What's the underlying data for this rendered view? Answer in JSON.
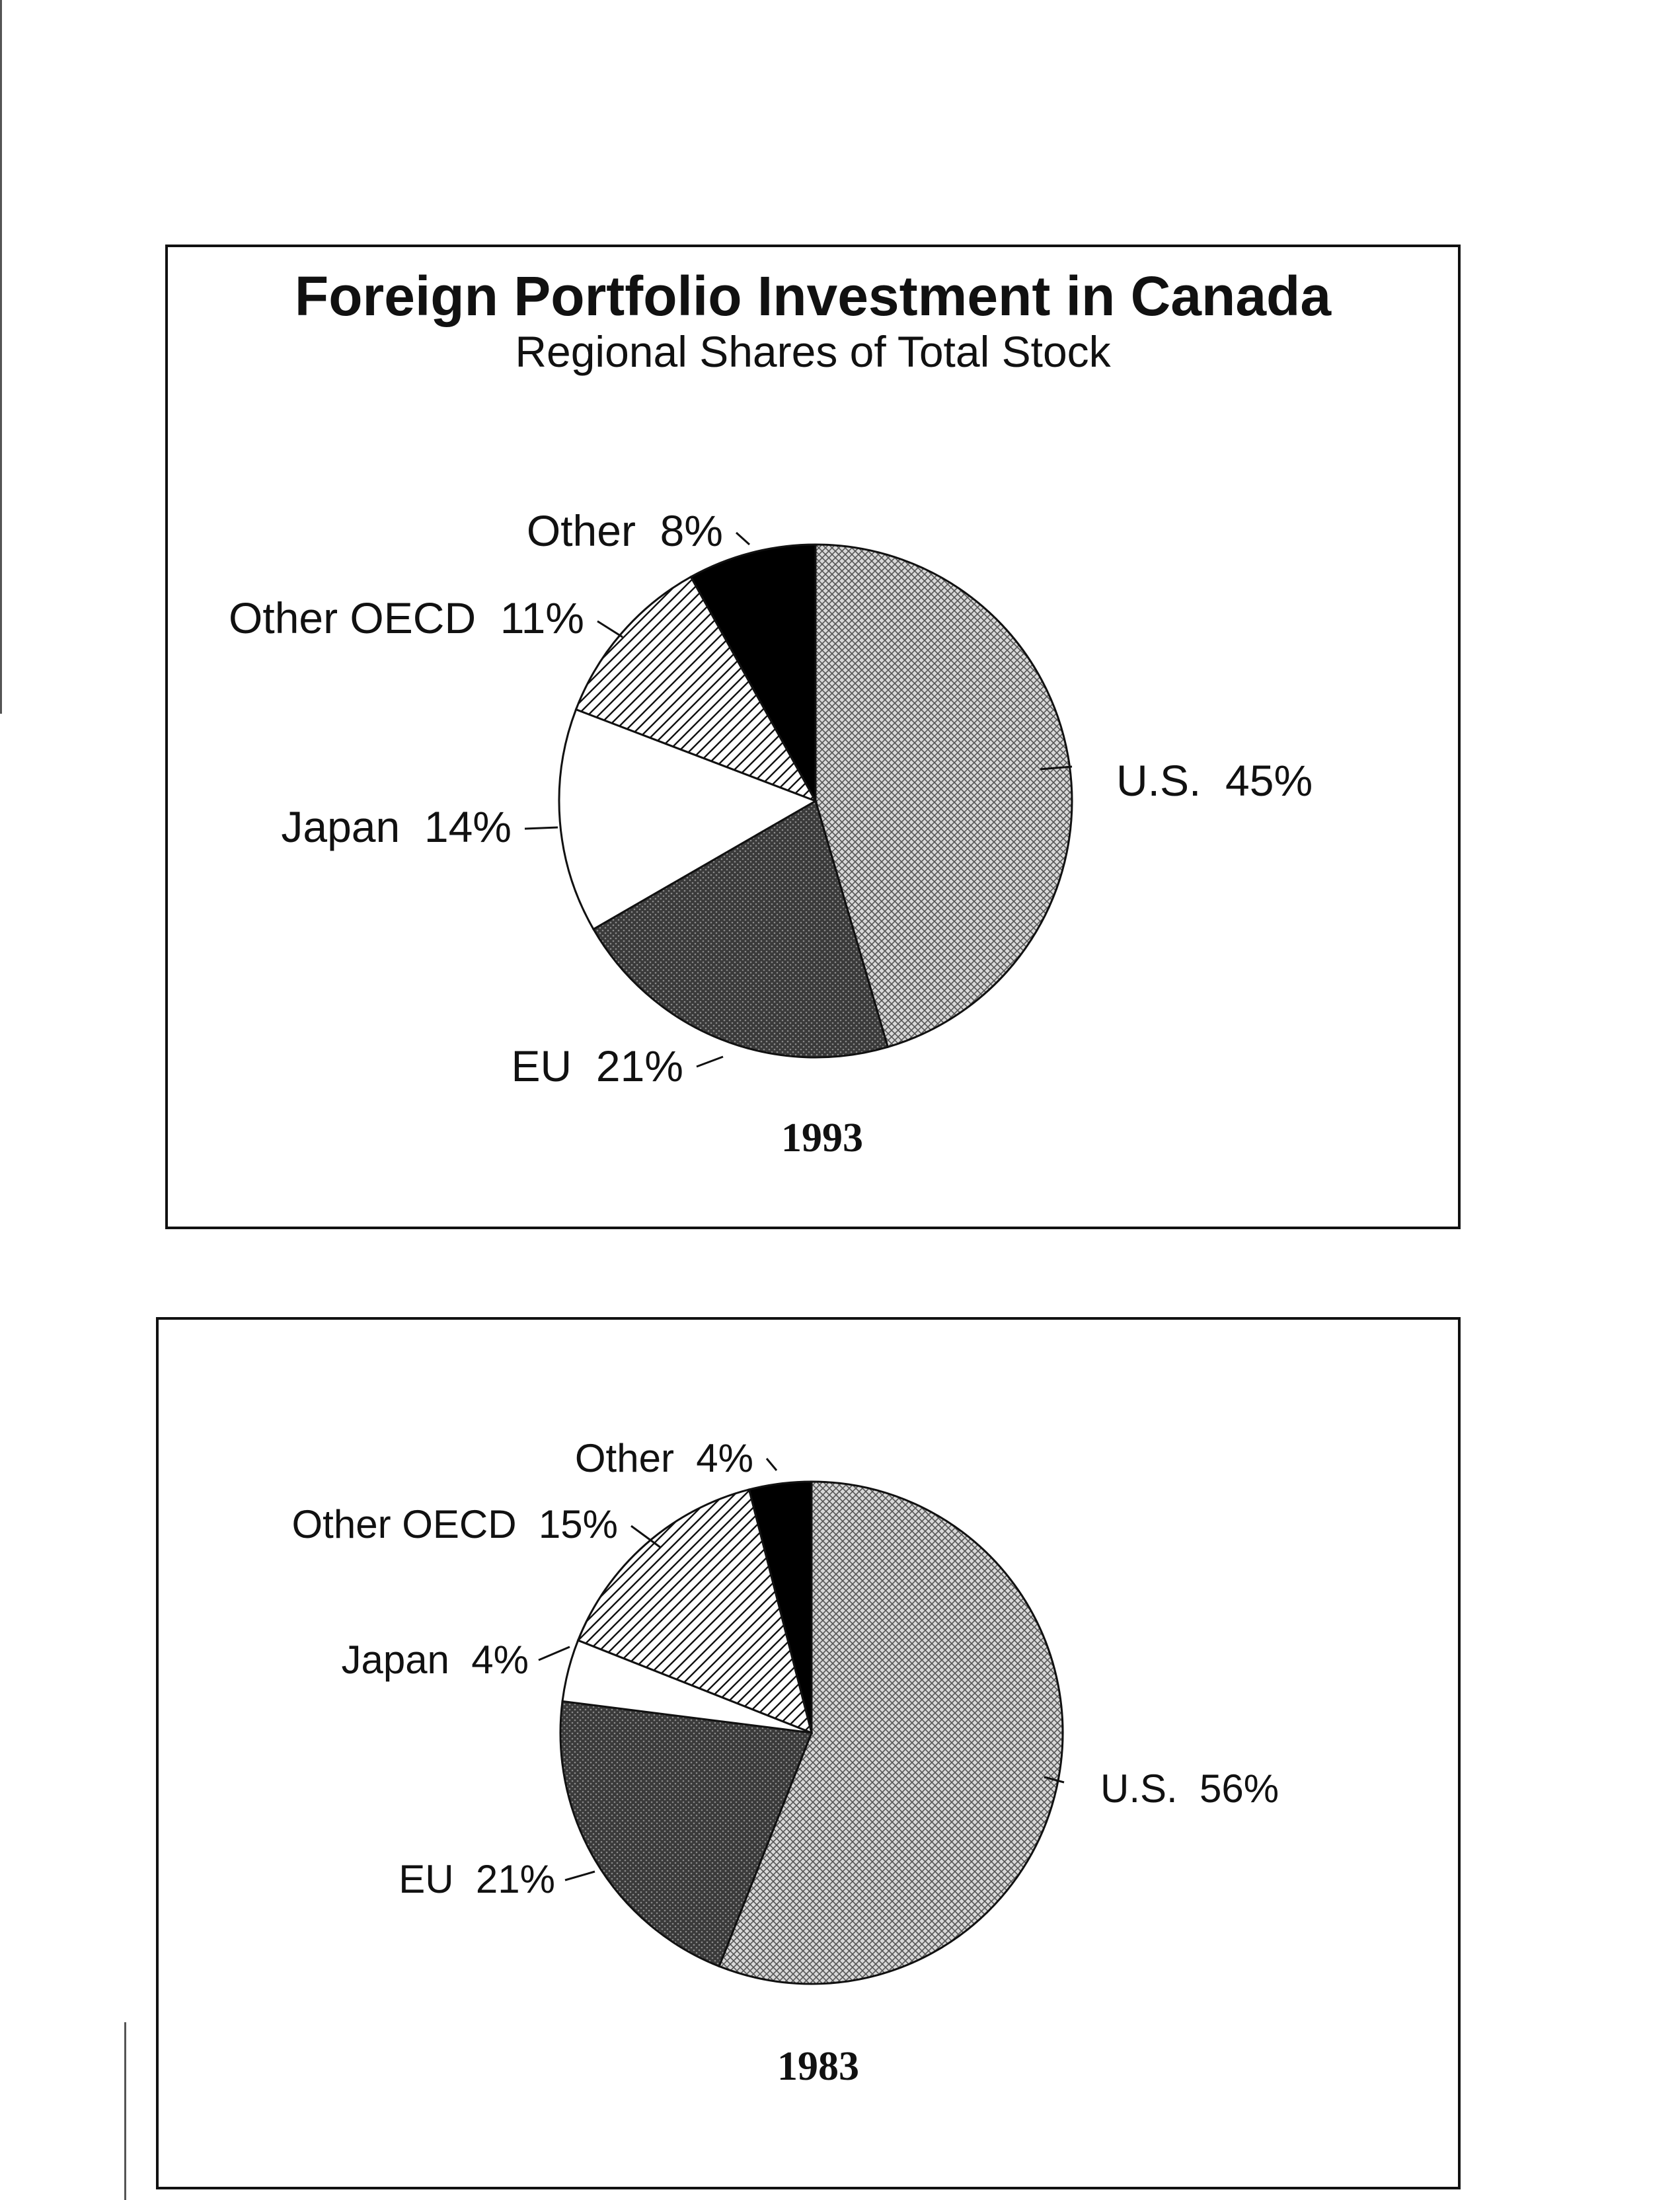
{
  "chart_data": [
    {
      "type": "pie",
      "title": "Foreign Portfolio Investment in Canada",
      "subtitle": "Regional Shares of Total Stock",
      "year": "1993",
      "slices": [
        {
          "name": "U.S.",
          "value": 45,
          "label": "U.S.  45%"
        },
        {
          "name": "EU",
          "value": 21,
          "label": "EU  21%"
        },
        {
          "name": "Japan",
          "value": 14,
          "label": "Japan  14%"
        },
        {
          "name": "Other OECD",
          "value": 11,
          "label": "Other OECD  11%"
        },
        {
          "name": "Other",
          "value": 8,
          "label": "Other  8%"
        }
      ]
    },
    {
      "type": "pie",
      "year": "1983",
      "slices": [
        {
          "name": "U.S.",
          "value": 56,
          "label": "U.S.  56%"
        },
        {
          "name": "EU",
          "value": 21,
          "label": "EU  21%"
        },
        {
          "name": "Japan",
          "value": 4,
          "label": "Japan  4%"
        },
        {
          "name": "Other OECD",
          "value": 15,
          "label": "Other OECD  15%"
        },
        {
          "name": "Other",
          "value": 4,
          "label": "Other  4%"
        }
      ]
    }
  ],
  "colors": {
    "us": "#bdbdbd",
    "eu": "#4a4a4a",
    "japan": "#ffffff",
    "other_oecd": "#e6e6e6",
    "other": "#000000",
    "stroke": "#111111"
  }
}
